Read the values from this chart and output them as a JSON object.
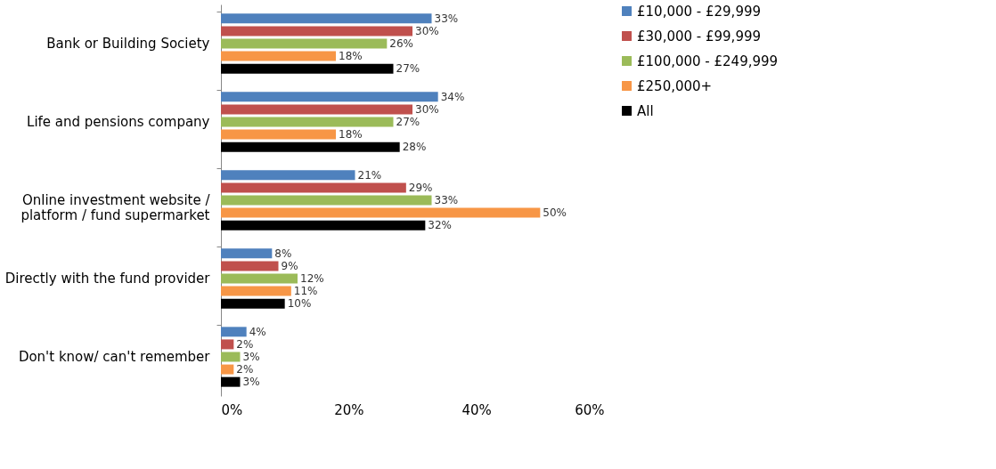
{
  "chart_data": {
    "type": "bar",
    "orientation": "horizontal",
    "categories": [
      "Bank or Building Society",
      "Life and pensions company",
      "Online investment website /\nplatform / fund supermarket",
      "Directly with the fund provider",
      "Don't know/ can't remember"
    ],
    "series": [
      {
        "name": "£10,000 - £29,999",
        "color": "#4f81bd",
        "values": [
          33,
          34,
          21,
          8,
          4
        ],
        "value_labels": [
          "33%",
          "34%",
          "21%",
          "8%",
          "4%"
        ]
      },
      {
        "name": "£30,000 - £99,999",
        "color": "#c0504d",
        "values": [
          30,
          30,
          29,
          9,
          2
        ],
        "value_labels": [
          "30%",
          "30%",
          "29%",
          "9%",
          "2%"
        ]
      },
      {
        "name": "£100,000 - £249,999",
        "color": "#9bbb59",
        "values": [
          26,
          27,
          33,
          12,
          3
        ],
        "value_labels": [
          "26%",
          "27%",
          "33%",
          "12%",
          "3%"
        ]
      },
      {
        "name": "£250,000+",
        "color": "#f79646",
        "values": [
          18,
          18,
          50,
          11,
          2
        ],
        "value_labels": [
          "18%",
          "18%",
          "50%",
          "11%",
          "2%"
        ]
      },
      {
        "name": "All",
        "color": "#000000",
        "values": [
          27,
          28,
          32,
          10,
          3
        ],
        "value_labels": [
          "27%",
          "28%",
          "32%",
          "10%",
          "3%"
        ]
      }
    ],
    "xlim": [
      0,
      60
    ],
    "xticks": [
      {
        "value": 0,
        "label": "0%"
      },
      {
        "value": 20,
        "label": "20%"
      },
      {
        "value": 40,
        "label": "40%"
      },
      {
        "value": 60,
        "label": "60%"
      }
    ],
    "grid": false,
    "legend": "right"
  }
}
